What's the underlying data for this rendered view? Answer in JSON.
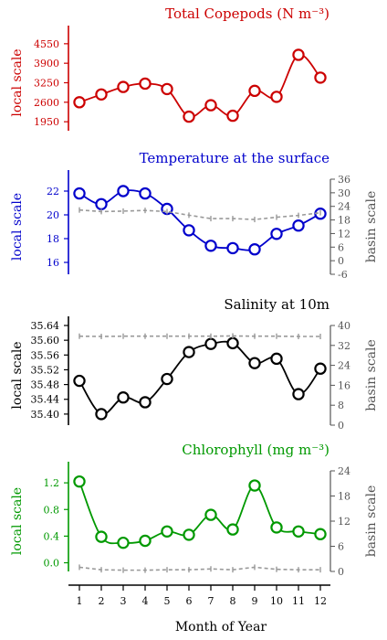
{
  "chart_data": [
    {
      "type": "line",
      "title": "Total Copepods (N m⁻³)",
      "ylabel": "local scale",
      "y2label": "",
      "color": "#cc0000",
      "yticks": [
        1950,
        2600,
        3250,
        3900,
        4550
      ],
      "ylim": [
        1650,
        4850
      ],
      "x": [
        1,
        2,
        3,
        4,
        5,
        6,
        7,
        8,
        9,
        10,
        11,
        12
      ],
      "series": [
        {
          "values": [
            2600,
            2860,
            3110,
            3220,
            3040,
            2120,
            2500,
            2150,
            2980,
            2780,
            4180,
            3420
          ]
        }
      ]
    },
    {
      "type": "line",
      "title": "Temperature at the surface",
      "ylabel": "local scale",
      "y2label": "basin scale",
      "color": "#0000cc",
      "yticks": [
        16,
        18,
        20,
        22
      ],
      "ylim": [
        15,
        23
      ],
      "y2ticks": [
        -6,
        0,
        6,
        12,
        18,
        24,
        30,
        36
      ],
      "y2lim": [
        -6,
        36
      ],
      "x": [
        1,
        2,
        3,
        4,
        5,
        6,
        7,
        8,
        9,
        10,
        11,
        12
      ],
      "series": [
        {
          "values": [
            21.8,
            20.9,
            22.0,
            21.8,
            20.5,
            18.7,
            17.4,
            17.2,
            17.1,
            18.4,
            19.1,
            20.1
          ]
        },
        {
          "axis": "basin",
          "values": [
            22.4,
            21.7,
            21.9,
            22.2,
            21.7,
            20.1,
            18.6,
            18.6,
            18.2,
            19.2,
            20.0,
            21.2
          ]
        }
      ]
    },
    {
      "type": "line",
      "title": "Salinity at 10m",
      "ylabel": "local scale",
      "y2label": "basin scale",
      "color": "#000000",
      "yticks": [
        35.4,
        35.44,
        35.48,
        35.52,
        35.56,
        35.6,
        35.64
      ],
      "yticklabels": [
        "35.40",
        "35.44",
        "35.48",
        "35.52",
        "35.56",
        "35.60",
        "35.64"
      ],
      "ylim": [
        35.37,
        35.64
      ],
      "y2ticks": [
        0,
        8,
        16,
        24,
        32,
        40
      ],
      "y2lim": [
        0,
        40
      ],
      "x": [
        1,
        2,
        3,
        4,
        5,
        6,
        7,
        8,
        9,
        10,
        11,
        12
      ],
      "series": [
        {
          "values": [
            35.49,
            35.4,
            35.445,
            35.432,
            35.495,
            35.568,
            35.59,
            35.592,
            35.538,
            35.55,
            35.454,
            35.523
          ]
        },
        {
          "axis": "basin",
          "values": [
            35.7,
            35.6,
            35.7,
            35.7,
            35.7,
            35.7,
            35.7,
            35.8,
            35.7,
            35.7,
            35.6,
            35.6
          ]
        }
      ]
    },
    {
      "type": "line",
      "title": "Chlorophyll (mg m⁻³)",
      "ylabel": "local scale",
      "y2label": "basin scale",
      "color": "#009900",
      "yticks": [
        0.0,
        0.4,
        0.8,
        1.2
      ],
      "yticklabels": [
        "0.0",
        "0.4",
        "0.8",
        "1.2"
      ],
      "ylim": [
        -0.13,
        1.38
      ],
      "y2ticks": [
        0,
        6,
        12,
        18,
        24
      ],
      "y2lim": [
        0,
        24
      ],
      "x": [
        1,
        2,
        3,
        4,
        5,
        6,
        7,
        8,
        9,
        10,
        11,
        12
      ],
      "series": [
        {
          "values": [
            1.22,
            0.39,
            0.3,
            0.33,
            0.47,
            0.42,
            0.72,
            0.5,
            1.16,
            0.53,
            0.47,
            0.43
          ]
        },
        {
          "axis": "basin",
          "values": [
            1.0,
            0.4,
            0.3,
            0.3,
            0.4,
            0.4,
            0.6,
            0.4,
            1.0,
            0.5,
            0.4,
            0.4
          ]
        }
      ]
    }
  ],
  "xlabel": "Month of Year",
  "xticks": [
    "1",
    "2",
    "3",
    "4",
    "5",
    "6",
    "7",
    "8",
    "9",
    "10",
    "11",
    "12"
  ]
}
